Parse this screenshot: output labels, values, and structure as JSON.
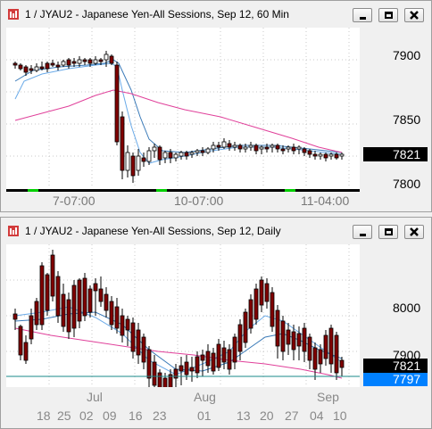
{
  "windows": [
    {
      "title": "1 / JYAU2 - Japanese Yen-All Sessions, Sep 12, 60 Min",
      "price_labels": [
        "7900",
        "7850",
        "7800"
      ],
      "last_price": "7821",
      "x_labels": [
        "7-07:00",
        "10-07:00",
        "11-04:00"
      ],
      "chart_data": {
        "type": "candlestick",
        "x": [
          "7-07:00",
          "10-07:00",
          "11-04:00"
        ],
        "y_range": [
          7790,
          7920
        ],
        "last": 7821
      }
    },
    {
      "title": "1 / JYAU2 - Japanese Yen-All Sessions, Sep 12, Daily",
      "price_labels": [
        "8000",
        "7900"
      ],
      "last_price": "7821",
      "line_price": "7797",
      "month_labels": [
        "Jul",
        "Aug",
        "Sep"
      ],
      "day_labels": [
        "18",
        "25",
        "02",
        "09",
        "16",
        "23",
        "01",
        "13",
        "20",
        "27",
        "04",
        "10"
      ],
      "chart_data": {
        "type": "candlestick",
        "months": [
          "Jul",
          "Aug",
          "Sep"
        ],
        "days": [
          "18",
          "25",
          "02",
          "09",
          "16",
          "23",
          "01",
          "13",
          "20",
          "27",
          "04",
          "10"
        ],
        "y_range": [
          7740,
          8060
        ],
        "last": 7821,
        "horizontal_line": 7797
      }
    }
  ],
  "colors": {
    "bull": "#ffffff",
    "bear": "#800000",
    "ma_fast": "#6aaae8",
    "ma_slow": "#e0409a",
    "last_bg": "#000000",
    "line_bg": "#0080ff",
    "grid": "#c8c8c8",
    "session_bar": "#00d000"
  },
  "icons": {
    "app": "chart-app-icon",
    "minimize": "minimize-icon",
    "restore": "restore-icon",
    "close": "close-icon"
  }
}
